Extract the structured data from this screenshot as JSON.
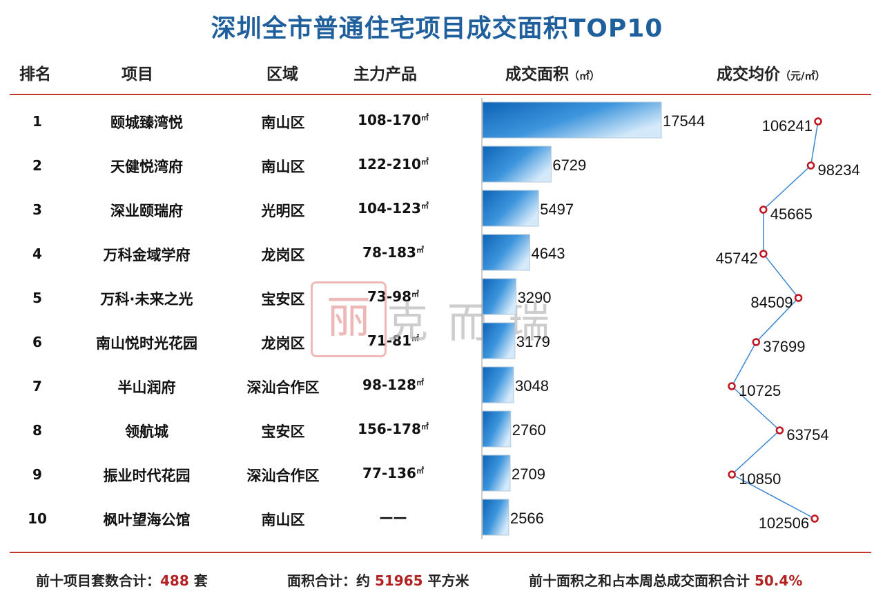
{
  "title": "深圳全市普通住宅项目成交面积TOP10",
  "headers": {
    "rank": "排名",
    "project": "项目",
    "district": "区域",
    "product": "主力产品",
    "area": "成交面积",
    "area_unit": "（㎡）",
    "price": "成交均价",
    "price_unit": "（元/㎡）"
  },
  "rows": [
    {
      "rank": "1",
      "name": "颐城臻湾悦",
      "district": "南山区",
      "product": "108-170",
      "unit": "㎡"
    },
    {
      "rank": "2",
      "name": "天健悦湾府",
      "district": "南山区",
      "product": "122-210",
      "unit": "㎡"
    },
    {
      "rank": "3",
      "name": "深业颐瑞府",
      "district": "光明区",
      "product": "104-123",
      "unit": "㎡"
    },
    {
      "rank": "4",
      "name": "万科金域学府",
      "district": "龙岗区",
      "product": "78-183",
      "unit": "㎡"
    },
    {
      "rank": "5",
      "name": "万科·未来之光",
      "district": "宝安区",
      "product": "73-98",
      "unit": "㎡"
    },
    {
      "rank": "6",
      "name": "南山悦时光花园",
      "district": "龙岗区",
      "product": "71-81",
      "unit": "㎡"
    },
    {
      "rank": "7",
      "name": "半山润府",
      "district": "深汕合作区",
      "product": "98-128",
      "unit": "㎡"
    },
    {
      "rank": "8",
      "name": "领航城",
      "district": "宝安区",
      "product": "156-178",
      "unit": "㎡"
    },
    {
      "rank": "9",
      "name": "振业时代花园",
      "district": "深汕合作区",
      "product": "77-136",
      "unit": "㎡"
    },
    {
      "rank": "10",
      "name": "枫叶望海公馆",
      "district": "南山区",
      "product": "——",
      "unit": ""
    }
  ],
  "chart_data": [
    {
      "type": "bar",
      "orientation": "horizontal",
      "title": "成交面积（㎡）",
      "categories": [
        "颐城臻湾悦",
        "天健悦湾府",
        "深业颐瑞府",
        "万科金域学府",
        "万科·未来之光",
        "南山悦时光花园",
        "半山润府",
        "领航城",
        "振业时代花园",
        "枫叶望海公馆"
      ],
      "values": [
        17544,
        6729,
        5497,
        4643,
        3290,
        3179,
        3048,
        2760,
        2709,
        2566
      ],
      "xlim": [
        0,
        17544
      ],
      "bar_color": "#1f78c8"
    },
    {
      "type": "line",
      "orientation": "vertical",
      "title": "成交均价（元/㎡）",
      "categories": [
        "颐城臻湾悦",
        "天健悦湾府",
        "深业颐瑞府",
        "万科金域学府",
        "万科·未来之光",
        "南山悦时光花园",
        "半山润府",
        "领航城",
        "振业时代花园",
        "枫叶望海公馆"
      ],
      "values": [
        106241,
        98234,
        45665,
        45742,
        84509,
        37699,
        10725,
        63754,
        10850,
        102506
      ],
      "label_side": [
        "left",
        "right",
        "right",
        "left",
        "left",
        "right",
        "right",
        "right",
        "right",
        "left"
      ],
      "line_color": "#3a87d0",
      "marker_color": "#c0141e"
    }
  ],
  "watermark": {
    "seal": "丽",
    "text": "克而瑞"
  },
  "footer": {
    "total_units_label": "前十项目套数合计：",
    "total_units": "488",
    "total_units_suffix": " 套",
    "total_area_label": "面积合计：约 ",
    "total_area": "51965",
    "total_area_suffix": " 平方米",
    "share_label": "前十面积之和占本周总成交面积合计 ",
    "share": "50.4%"
  },
  "colors": {
    "title": "#1f5f9c",
    "accent_red": "#c0392b",
    "bar": "#1f78c8",
    "line": "#3a87d0",
    "marker": "#c0141e"
  }
}
